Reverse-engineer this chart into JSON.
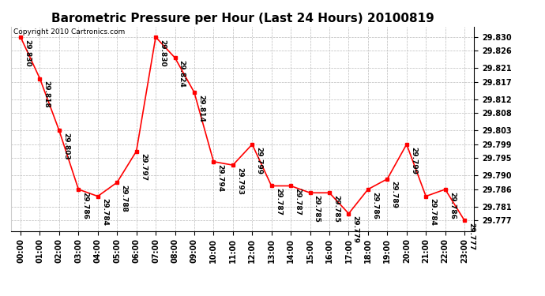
{
  "title": "Barometric Pressure per Hour (Last 24 Hours) 20100819",
  "copyright": "Copyright 2010 Cartronics.com",
  "hours": [
    "00:00",
    "01:00",
    "02:00",
    "03:00",
    "04:00",
    "05:00",
    "06:00",
    "07:00",
    "08:00",
    "09:00",
    "10:00",
    "11:00",
    "12:00",
    "13:00",
    "14:00",
    "15:00",
    "16:00",
    "17:00",
    "18:00",
    "19:00",
    "20:00",
    "21:00",
    "22:00",
    "23:00"
  ],
  "values": [
    29.83,
    29.818,
    29.803,
    29.786,
    29.784,
    29.788,
    29.797,
    29.83,
    29.824,
    29.814,
    29.794,
    29.793,
    29.799,
    29.787,
    29.787,
    29.785,
    29.785,
    29.779,
    29.786,
    29.789,
    29.799,
    29.784,
    29.786,
    29.777
  ],
  "yticks": [
    29.777,
    29.781,
    29.786,
    29.79,
    29.795,
    29.799,
    29.803,
    29.808,
    29.812,
    29.817,
    29.821,
    29.826,
    29.83
  ],
  "ylim_min": 29.774,
  "ylim_max": 29.833,
  "line_color": "red",
  "marker_color": "red",
  "bg_color": "white",
  "grid_color": "#bbbbbb",
  "title_fontsize": 11,
  "annotation_fontsize": 6.5,
  "copyright_fontsize": 6.5,
  "xtick_fontsize": 7,
  "ytick_fontsize": 7
}
